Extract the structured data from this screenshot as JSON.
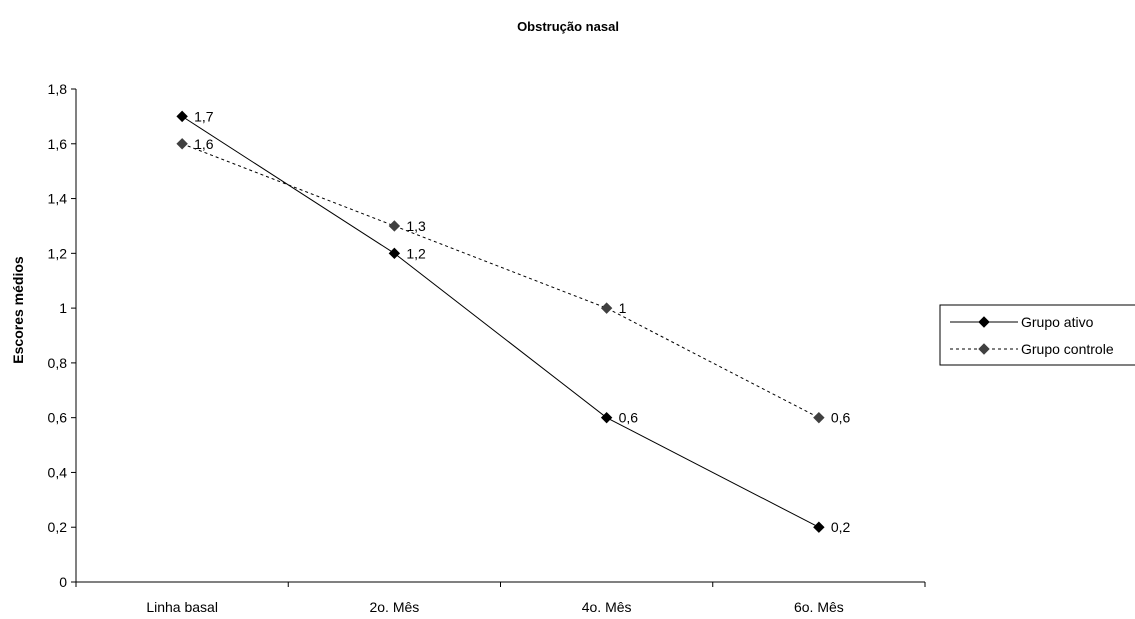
{
  "chart_data": {
    "type": "line",
    "title": "Obstrução nasal",
    "xlabel": "",
    "ylabel": "Escores médios",
    "categories": [
      "Linha basal",
      "2o. Mês",
      "4o. Mês",
      "6o. Mês"
    ],
    "ylim": [
      0,
      1.8
    ],
    "yticks": [
      0,
      0.2,
      0.4,
      0.6,
      0.8,
      1,
      1.2,
      1.4,
      1.6,
      1.8
    ],
    "ytick_labels": [
      "0",
      "0,2",
      "0,4",
      "0,6",
      "0,8",
      "1",
      "1,2",
      "1,4",
      "1,6",
      "1,8"
    ],
    "grid": false,
    "legend_position": "right",
    "series": [
      {
        "name": "Grupo ativo",
        "values": [
          1.7,
          1.2,
          0.6,
          0.2
        ],
        "labels": [
          "1,7",
          "1,2",
          "0,6",
          "0,2"
        ],
        "color": "#000000",
        "marker_color": "#000000",
        "line_style": "solid",
        "marker": "diamond"
      },
      {
        "name": "Grupo controle",
        "values": [
          1.6,
          1.3,
          1.0,
          0.6
        ],
        "labels": [
          "1,6",
          "1,3",
          "1",
          "0,6"
        ],
        "color": "#000000",
        "marker_color": "#404040",
        "line_style": "dotted",
        "marker": "diamond"
      }
    ]
  }
}
